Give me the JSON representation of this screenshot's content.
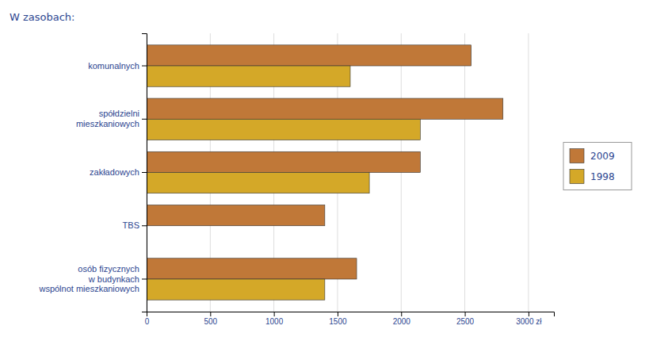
{
  "chart_data": {
    "type": "bar",
    "orientation": "horizontal",
    "title": "W zasobach:",
    "categories": [
      "komunalnych",
      "spółdzielni\nmieszkaniowych",
      "zakładowych",
      "TBS",
      "osób fizycznych\nw budynkach\nwspólnot mieszkaniowych"
    ],
    "series": [
      {
        "name": "2009",
        "color": "#C07838",
        "values": [
          2550,
          2800,
          2150,
          1400,
          1650
        ]
      },
      {
        "name": "1998",
        "color": "#D4A828",
        "values": [
          1600,
          2150,
          1750,
          0,
          1400
        ]
      }
    ],
    "xlim": [
      0,
      3200
    ],
    "xticks": [
      0,
      500,
      1000,
      1500,
      2000,
      2500,
      {
        "value": 3000,
        "label": "3000 zł"
      }
    ],
    "grid": true,
    "legend": "right"
  }
}
